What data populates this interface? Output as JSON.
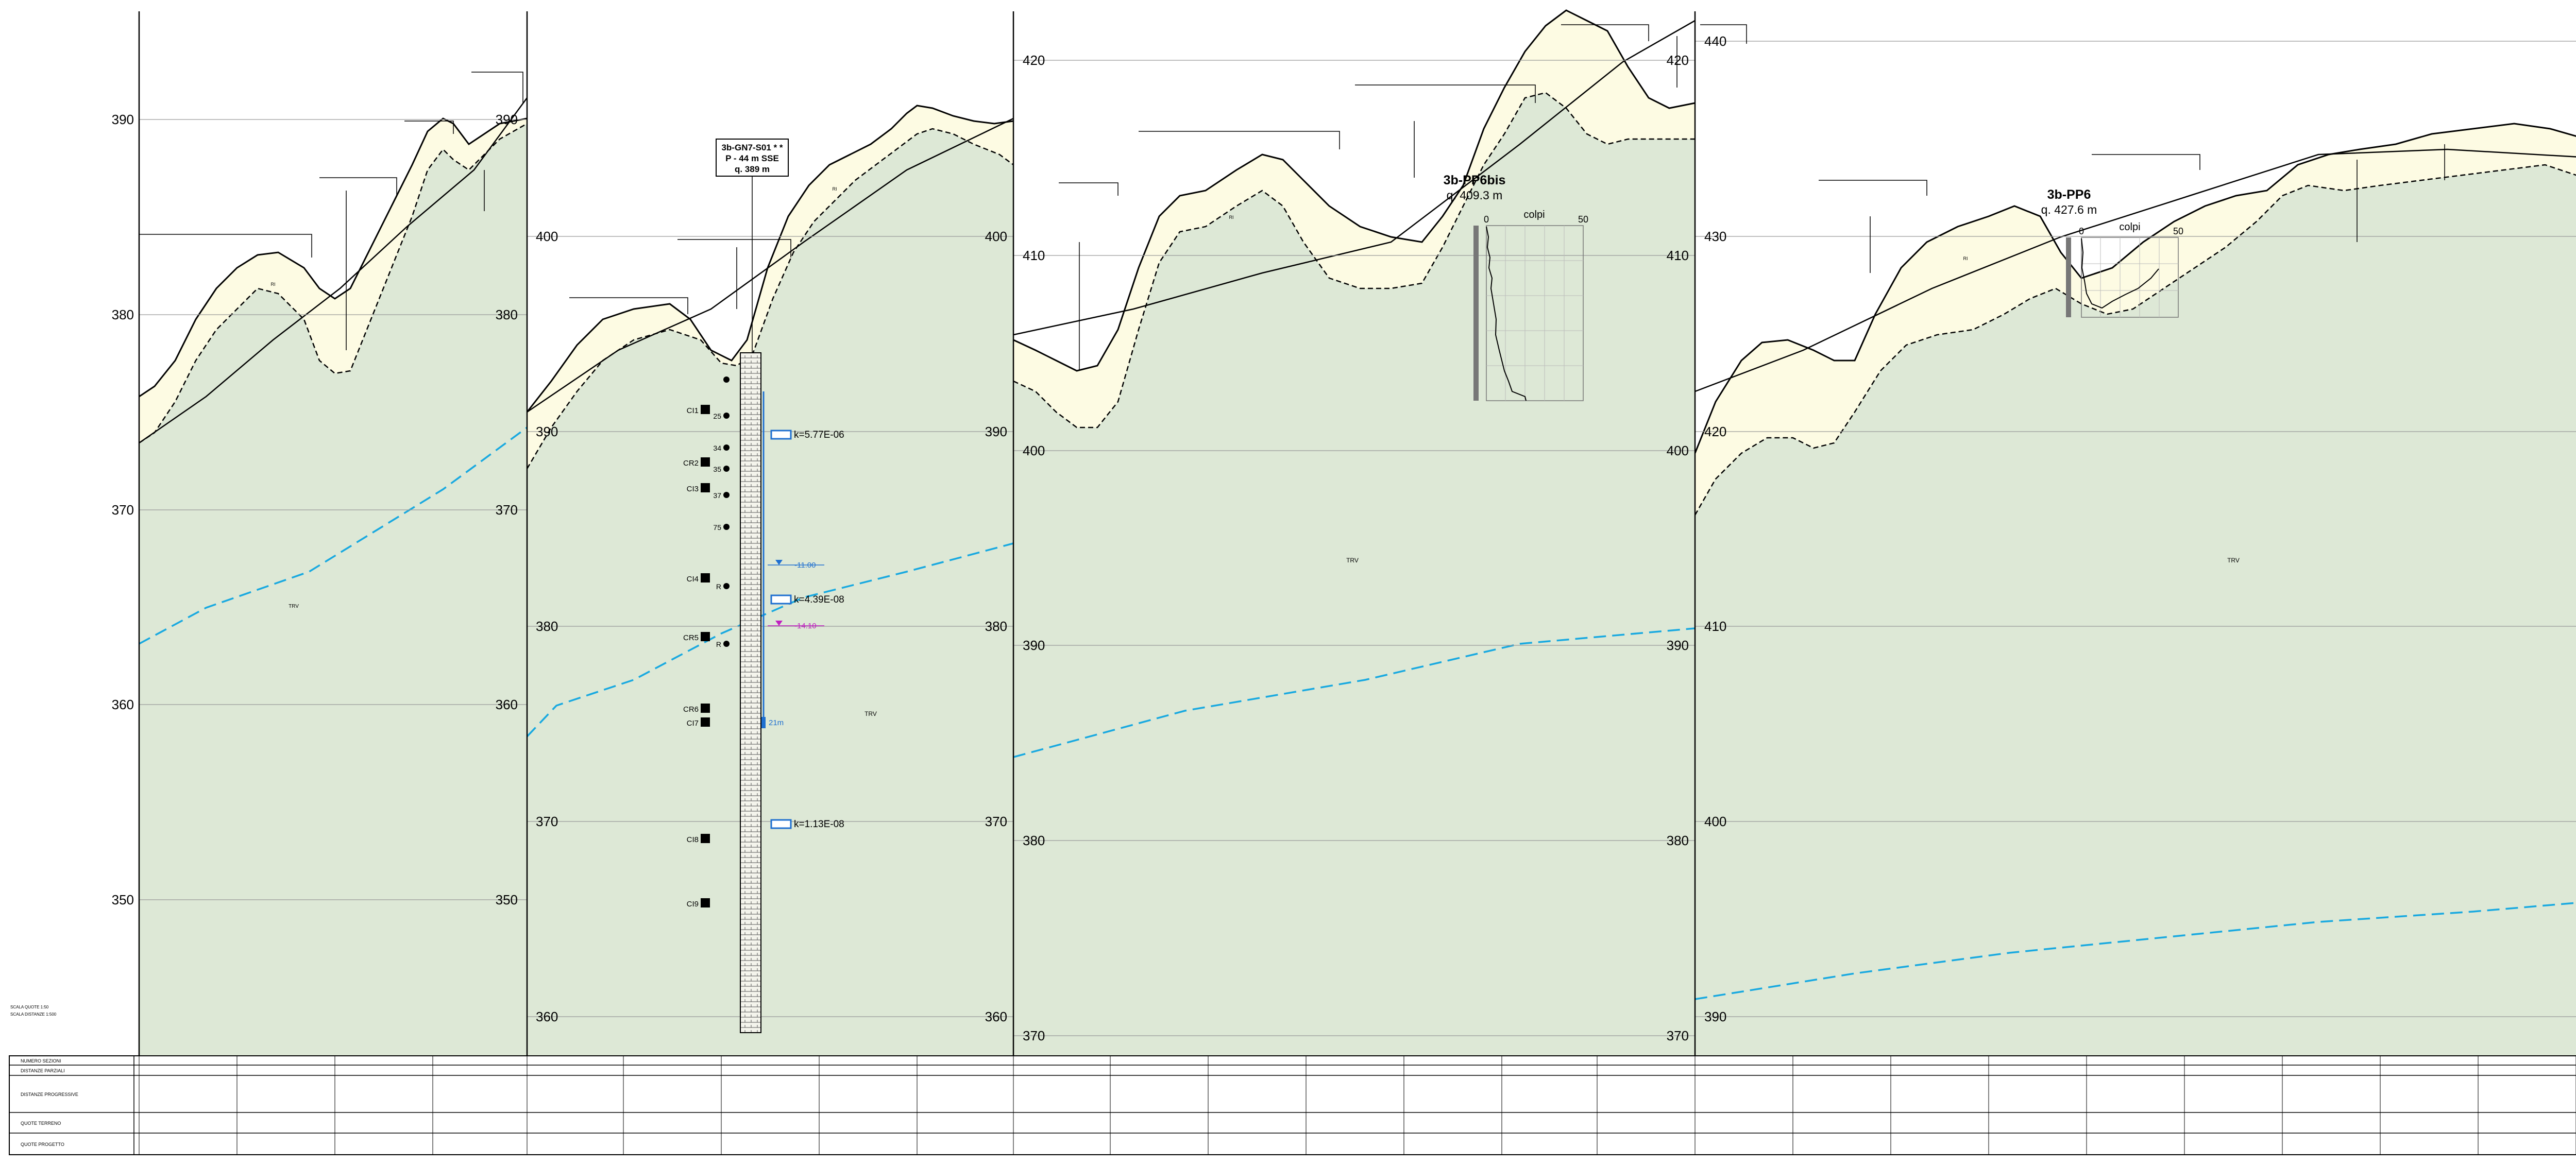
{
  "panels": [
    {
      "id": "p1",
      "left_tick_labels": [
        "390",
        "380",
        "370",
        "360",
        "350"
      ],
      "right_tick_labels": [
        "390",
        "380",
        "370",
        "360",
        "350"
      ],
      "deposit_label": "RI",
      "bedrock_label": "TRV"
    },
    {
      "id": "p2",
      "left_tick_labels": [
        "400",
        "390",
        "380",
        "370",
        "360"
      ],
      "right_tick_labels": [
        "400",
        "390",
        "380",
        "370",
        "360"
      ],
      "deposit_label": "RI",
      "bedrock_label": "TRV",
      "borehole": {
        "title": [
          "3b-GN7-S01 * *",
          "P - 44 m SSE",
          "q. 389 m"
        ],
        "samples": [
          "CI1",
          "CR2",
          "CI3",
          "CI4",
          "CR5",
          "CR6",
          "CI7",
          "CI8",
          "CI9"
        ],
        "spt_values": [
          "25",
          "34",
          "35",
          "37",
          "75",
          "R",
          "R"
        ],
        "permeability": [
          "k=5.77E-06",
          "k=4.39E-08",
          "k=1.13E-08"
        ],
        "water_levels": [
          {
            "label": "-11.00",
            "color": "#1e6fd0"
          },
          {
            "label": "-14.10",
            "color": "#c020c0"
          }
        ],
        "piezometer_label": "21m"
      }
    },
    {
      "id": "p3",
      "left_tick_labels": [
        "420",
        "410",
        "400",
        "390",
        "380",
        "370"
      ],
      "right_tick_labels": [
        "420",
        "410",
        "400",
        "390",
        "380",
        "370"
      ],
      "deposit_label": "RI",
      "bedrock_label": "TRV",
      "penetrometer": {
        "name": "3b-PP6bis",
        "elevation": "q. 409.3 m",
        "axis_title": "colpi",
        "axis_ticks": [
          "0",
          "50"
        ]
      }
    },
    {
      "id": "p4",
      "left_tick_labels": [
        "440",
        "430",
        "420",
        "410",
        "400",
        "390"
      ],
      "right_tick_labels": [
        "440",
        "430",
        "420",
        "410",
        "400",
        "390"
      ],
      "deposit_label": "RI",
      "bedrock_label": "TRV",
      "penetrometer": {
        "name": "3b-PP6",
        "elevation": "q. 427.6 m",
        "axis_title": "colpi",
        "axis_ticks": [
          "0",
          "50"
        ]
      }
    }
  ],
  "scale_notes": [
    "SCALA QUOTE   1:50",
    "SCALA DISTANZE  1:500"
  ],
  "profile_table": {
    "row_labels": [
      "NUMERO SEZIONI",
      "DISTANZE PARZIALI",
      "DISTANZE PROGRESSIVE",
      "QUOTE TERRENO",
      "QUOTE PROGETTO"
    ]
  },
  "colors": {
    "bedrock_fill": "#dde8d6",
    "deposit_fill": "#fdfbe3",
    "water_table": "#19a9e0",
    "grid_line": "#999999",
    "borehole_marker": "#1e6fd0"
  }
}
